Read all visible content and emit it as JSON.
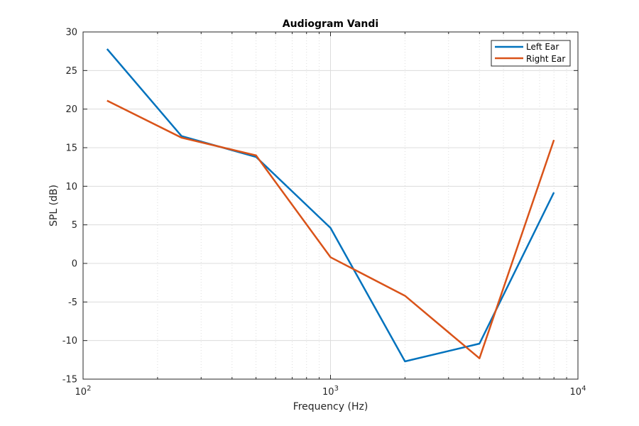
{
  "chart_data": {
    "type": "line",
    "title": "Audiogram Vandi",
    "xlabel": "Frequency (Hz)",
    "ylabel": "SPL (dB)",
    "xscale": "log",
    "xlim": [
      100,
      10000
    ],
    "ylim": [
      -15,
      30
    ],
    "xticks": [
      {
        "value": 100,
        "base": "10",
        "exp": "2"
      },
      {
        "value": 1000,
        "base": "10",
        "exp": "3"
      },
      {
        "value": 10000,
        "base": "10",
        "exp": "4"
      }
    ],
    "yticks": [
      "30",
      "25",
      "20",
      "15",
      "10",
      "5",
      "0",
      "-5",
      "-10",
      "-15"
    ],
    "grid": true,
    "legend_position": "top-right",
    "x": [
      125,
      250,
      500,
      1000,
      2000,
      4000,
      8000
    ],
    "series": [
      {
        "name": "Left Ear",
        "color": "#0072bd",
        "values": [
          27.8,
          16.5,
          13.8,
          4.6,
          -12.7,
          -10.4,
          9.2
        ]
      },
      {
        "name": "Right Ear",
        "color": "#d95319",
        "values": [
          21.1,
          16.3,
          14.0,
          0.8,
          -4.2,
          -12.3,
          16.0
        ]
      }
    ]
  }
}
